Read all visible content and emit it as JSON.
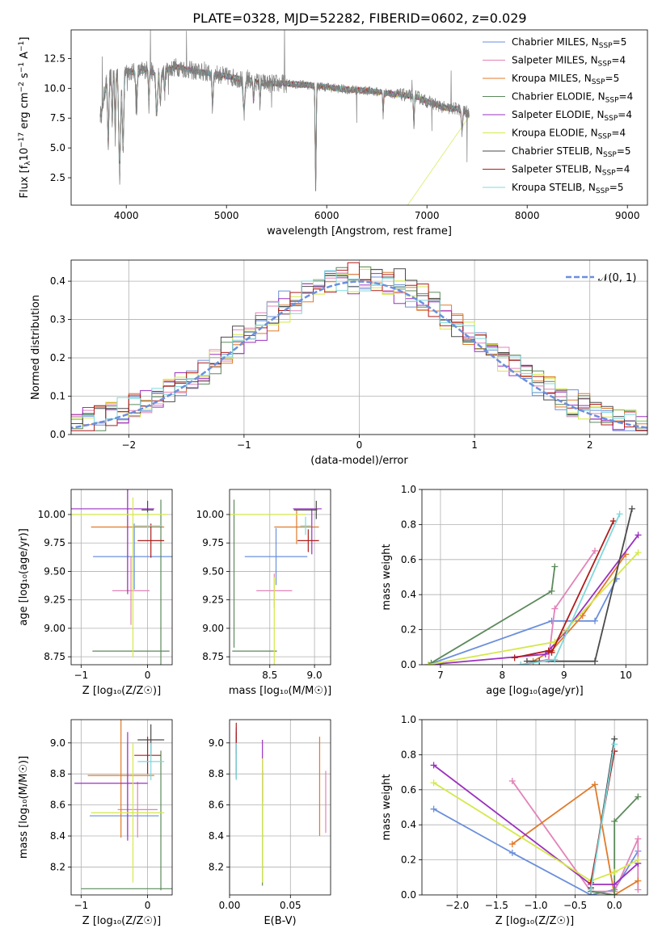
{
  "figure_title": "PLATE=0328, MJD=52282, FIBERID=0602, z=0.029",
  "legend_entries": [
    {
      "imf": "Chabrier",
      "lib": "MILES",
      "n": "5",
      "color": "#6b8fdc"
    },
    {
      "imf": "Salpeter",
      "lib": "MILES",
      "n": "4",
      "color": "#e283b8"
    },
    {
      "imf": "Kroupa",
      "lib": "MILES",
      "n": "5",
      "color": "#e07b2a"
    },
    {
      "imf": "Chabrier",
      "lib": "ELODIE",
      "n": "4",
      "color": "#5c8a5c"
    },
    {
      "imf": "Salpeter",
      "lib": "ELODIE",
      "n": "4",
      "color": "#9b30c0"
    },
    {
      "imf": "Kroupa",
      "lib": "ELODIE",
      "n": "4",
      "color": "#d4e84a"
    },
    {
      "imf": "Chabrier",
      "lib": "STELIB",
      "n": "5",
      "color": "#4a4a4a"
    },
    {
      "imf": "Salpeter",
      "lib": "STELIB",
      "n": "4",
      "color": "#b01c1c"
    },
    {
      "imf": "Kroupa",
      "lib": "STELIB",
      "n": "5",
      "color": "#7fd8dc"
    }
  ],
  "chart_data": [
    {
      "id": "spectrum",
      "type": "line",
      "xlabel": "wavelength [Angstrom, rest frame]",
      "ylabel_parts": [
        "Flux [f",
        "λ",
        "10",
        "−17",
        " erg cm",
        "−2",
        " s",
        "−1",
        " A",
        "−1",
        "]"
      ],
      "xlim": [
        3450,
        9200
      ],
      "ylim": [
        0.2,
        14.9
      ],
      "xticks": [
        4000,
        5000,
        6000,
        7000,
        8000,
        9000
      ],
      "yticks": [
        2.5,
        5.0,
        7.5,
        10.0,
        12.5
      ],
      "ytick_labels": [
        "2.5",
        "5.0",
        "7.5",
        "10.0",
        "12.5"
      ],
      "data_series": "gray",
      "model_series": [
        0,
        1,
        2,
        3,
        4,
        5,
        6,
        7,
        8
      ],
      "data_profile": {
        "wavelength": [
          3750,
          3800,
          3900,
          4000,
          4100,
          4200,
          4300,
          4400,
          4500,
          4600,
          4700,
          4800,
          4900,
          5000,
          5200,
          5400,
          5600,
          5800,
          6000,
          6200,
          6400,
          6600,
          6800,
          6900,
          7000,
          7100,
          7200,
          7300,
          7400,
          7420
        ],
        "flux": [
          7.8,
          10.5,
          11.5,
          11.5,
          11.3,
          11.6,
          11.2,
          11.5,
          11.8,
          11.6,
          11.4,
          11.3,
          11.2,
          11.0,
          10.7,
          10.4,
          10.4,
          10.3,
          10.1,
          9.9,
          9.8,
          9.6,
          9.4,
          9.3,
          8.9,
          8.6,
          8.3,
          8.3,
          8.0,
          7.8
        ]
      }
    },
    {
      "id": "residuals",
      "type": "histogram",
      "xlabel": "(data-model)/error",
      "ylabel": "Normed distribution",
      "xlim": [
        -2.5,
        2.5
      ],
      "ylim": [
        0,
        0.455
      ],
      "xticks": [
        -2,
        -1,
        0,
        1,
        2
      ],
      "xtick_labels": [
        "−2",
        "−1",
        "0",
        "1",
        "2"
      ],
      "yticks": [
        0.0,
        0.1,
        0.2,
        0.3,
        0.4
      ],
      "ytick_labels": [
        "0.0",
        "0.1",
        "0.2",
        "0.3",
        "0.4"
      ],
      "bin_width": 0.1,
      "gaussian_label": "𝒩(0, 1)",
      "gaussian_color": "#6b8fdc"
    },
    {
      "id": "age_vs_Z",
      "type": "errorbar",
      "xlabel": "Z [log₁₀(Z/Z☉)]",
      "ylabel": "age  [log₁₀(age/yr)]",
      "xlim": [
        -1.15,
        0.37
      ],
      "ylim": [
        8.68,
        10.22
      ],
      "xticks": [
        -1,
        0
      ],
      "xtick_labels": [
        "−1",
        "0"
      ],
      "yticks": [
        8.75,
        9.0,
        9.25,
        9.5,
        9.75,
        10.0
      ],
      "ytick_labels": [
        "8.75",
        "9.00",
        "9.25",
        "9.50",
        "9.75",
        "10.00"
      ],
      "points": [
        {
          "s": 0,
          "x": -0.2,
          "xerr": 0.62,
          "y": 9.63,
          "yerr": 0.29
        },
        {
          "s": 1,
          "x": -0.25,
          "xerr": 0.28,
          "y": 9.33,
          "yerr": 0.3
        },
        {
          "s": 2,
          "x": -0.3,
          "xerr": 0.55,
          "y": 9.89,
          "yerr": 0.56
        },
        {
          "s": 3,
          "x": -0.25,
          "xerr": 0.58,
          "y": 8.8,
          "yerr": 0.0
        },
        {
          "s": 3,
          "x": 0.2,
          "xerr": 0.0,
          "y": 9.28,
          "yerr": 0.85
        },
        {
          "s": 4,
          "x": -0.55,
          "xerr": 0.65,
          "y": 10.05,
          "yerr": 0.0
        },
        {
          "s": 4,
          "x": -0.3,
          "xerr": 0.0,
          "y": 9.8,
          "yerr": 0.5
        },
        {
          "s": 5,
          "x": -0.45,
          "xerr": 0.75,
          "y": 10.0,
          "yerr": 0.0
        },
        {
          "s": 5,
          "x": -0.22,
          "xerr": 0.0,
          "y": 9.45,
          "yerr": 0.7
        },
        {
          "s": 6,
          "x": 0.0,
          "xerr": 0.09,
          "y": 10.04,
          "yerr": 0.08
        },
        {
          "s": 7,
          "x": 0.05,
          "xerr": 0.2,
          "y": 9.77,
          "yerr": 0.15
        },
        {
          "s": 8,
          "x": 0.0,
          "xerr": 0.22,
          "y": 9.9,
          "yerr": 0.12
        }
      ]
    },
    {
      "id": "age_vs_mass",
      "type": "errorbar",
      "xlabel": "mass [log₁₀(M/M☉)]",
      "ylabel": "",
      "xlim": [
        8.05,
        9.18
      ],
      "ylim": [
        8.68,
        10.22
      ],
      "xticks": [
        8.5,
        9.0
      ],
      "xtick_labels": [
        "8.5",
        "9.0"
      ],
      "yticks": [
        8.75,
        9.0,
        9.25,
        9.5,
        9.75,
        10.0
      ],
      "ytick_labels": [
        "8.75",
        "9.00",
        "9.25",
        "9.50",
        "9.75",
        "10.00"
      ],
      "points": [
        {
          "s": 0,
          "x": 8.57,
          "xerr": 0.35,
          "y": 9.63,
          "yerr": 0.25
        },
        {
          "s": 1,
          "x": 8.55,
          "xerr": 0.2,
          "y": 9.33,
          "yerr": 0.15
        },
        {
          "s": 2,
          "x": 8.8,
          "xerr": 0.25,
          "y": 9.89,
          "yerr": 0.15
        },
        {
          "s": 3,
          "x": 8.1,
          "xerr": 0.0,
          "y": 9.48,
          "yerr": 0.65
        },
        {
          "s": 3,
          "x": 8.33,
          "xerr": 0.25,
          "y": 8.8,
          "yerr": 0.0
        },
        {
          "s": 4,
          "x": 8.97,
          "xerr": 0.0,
          "y": 9.85,
          "yerr": 0.2
        },
        {
          "s": 4,
          "x": 8.92,
          "xerr": 0.16,
          "y": 10.05,
          "yerr": 0.0
        },
        {
          "s": 5,
          "x": 8.55,
          "xerr": 0.0,
          "y": 9.0,
          "yerr": 0.45
        },
        {
          "s": 5,
          "x": 8.45,
          "xerr": 0.45,
          "y": 10.0,
          "yerr": 0.0
        },
        {
          "s": 6,
          "x": 9.02,
          "xerr": 0.0,
          "y": 10.04,
          "yerr": 0.08
        },
        {
          "s": 6,
          "x": 8.9,
          "xerr": 0.13,
          "y": 10.04,
          "yerr": 0.0
        },
        {
          "s": 7,
          "x": 8.93,
          "xerr": 0.12,
          "y": 9.77,
          "yerr": 0.1
        },
        {
          "s": 8,
          "x": 8.9,
          "xerr": 0.06,
          "y": 9.9,
          "yerr": 0.08
        }
      ]
    },
    {
      "id": "weight_vs_age",
      "type": "line",
      "xlabel": "age  [log₁₀(age/yr)]",
      "ylabel": "mass weight",
      "xlim": [
        6.7,
        10.35
      ],
      "ylim": [
        0,
        1.0
      ],
      "xticks": [
        7,
        8,
        9,
        10
      ],
      "xtick_labels": [
        "7",
        "8",
        "9",
        "10"
      ],
      "yticks": [
        0.0,
        0.2,
        0.4,
        0.6,
        0.8,
        1.0
      ],
      "ytick_labels": [
        "0.0",
        "0.2",
        "0.4",
        "0.6",
        "0.8",
        "1.0"
      ],
      "series": [
        {
          "s": 0,
          "x": [
            6.8,
            8.8,
            9.5,
            9.85
          ],
          "y": [
            0.0,
            0.25,
            0.25,
            0.49
          ]
        },
        {
          "s": 1,
          "x": [
            8.3,
            8.75,
            8.85,
            9.5
          ],
          "y": [
            0.0,
            0.03,
            0.32,
            0.65
          ]
        },
        {
          "s": 2,
          "x": [
            8.5,
            8.8,
            9.3,
            10.0
          ],
          "y": [
            0.02,
            0.08,
            0.28,
            0.63
          ]
        },
        {
          "s": 3,
          "x": [
            6.85,
            8.8,
            8.85
          ],
          "y": [
            0.01,
            0.42,
            0.56
          ]
        },
        {
          "s": 4,
          "x": [
            6.8,
            8.7,
            9.0,
            10.2
          ],
          "y": [
            0.0,
            0.06,
            0.18,
            0.74
          ]
        },
        {
          "s": 5,
          "x": [
            6.8,
            8.85,
            10.2
          ],
          "y": [
            0.0,
            0.13,
            0.64
          ]
        },
        {
          "s": 6,
          "x": [
            8.4,
            8.6,
            9.5,
            10.1
          ],
          "y": [
            0.02,
            0.02,
            0.02,
            0.89
          ]
        },
        {
          "s": 7,
          "x": [
            8.2,
            8.75,
            8.8,
            9.8
          ],
          "y": [
            0.04,
            0.08,
            0.07,
            0.82
          ]
        },
        {
          "s": 8,
          "x": [
            8.3,
            8.85,
            9.9
          ],
          "y": [
            0.0,
            0.03,
            0.86
          ]
        }
      ]
    },
    {
      "id": "mass_vs_Z",
      "type": "errorbar",
      "xlabel": "Z [log₁₀(Z/Z☉)]",
      "ylabel": "mass [log₁₀(M/M☉)]",
      "xlim": [
        -1.15,
        0.37
      ],
      "ylim": [
        8.02,
        9.15
      ],
      "xticks": [
        -1,
        0
      ],
      "xtick_labels": [
        "−1",
        "0"
      ],
      "yticks": [
        8.2,
        8.4,
        8.6,
        8.8,
        9.0
      ],
      "ytick_labels": [
        "8.2",
        "8.4",
        "8.6",
        "8.8",
        "9.0"
      ],
      "points": [
        {
          "s": 0,
          "x": -0.35,
          "xerr": 0.52,
          "y": 8.53,
          "yerr": 0.0
        },
        {
          "s": 0,
          "x": -0.3,
          "xerr": 0.0,
          "y": 8.7,
          "yerr": 0.3
        },
        {
          "s": 1,
          "x": -0.15,
          "xerr": 0.3,
          "y": 8.57,
          "yerr": 0.18
        },
        {
          "s": 2,
          "x": -0.4,
          "xerr": 0.5,
          "y": 8.79,
          "yerr": 0.4
        },
        {
          "s": 3,
          "x": -0.3,
          "xerr": 0.7,
          "y": 8.06,
          "yerr": 0.0
        },
        {
          "s": 3,
          "x": 0.2,
          "xerr": 0.0,
          "y": 8.5,
          "yerr": 0.45
        },
        {
          "s": 4,
          "x": -0.55,
          "xerr": 0.55,
          "y": 8.74,
          "yerr": 0.0
        },
        {
          "s": 4,
          "x": -0.3,
          "xerr": 0.0,
          "y": 8.72,
          "yerr": 0.35
        },
        {
          "s": 5,
          "x": -0.3,
          "xerr": 0.55,
          "y": 8.55,
          "yerr": 0.0
        },
        {
          "s": 5,
          "x": -0.22,
          "xerr": 0.0,
          "y": 8.55,
          "yerr": 0.45
        },
        {
          "s": 6,
          "x": 0.05,
          "xerr": 0.2,
          "y": 9.02,
          "yerr": 0.1
        },
        {
          "s": 7,
          "x": 0.0,
          "xerr": 0.2,
          "y": 8.92,
          "yerr": 0.12
        },
        {
          "s": 8,
          "x": 0.05,
          "xerr": 0.2,
          "y": 8.88,
          "yerr": 0.12
        }
      ]
    },
    {
      "id": "mass_vs_ebv",
      "type": "errorbar",
      "xlabel": "E(B-V)",
      "ylabel": "",
      "xlim": [
        0.0,
        0.083
      ],
      "ylim": [
        8.02,
        9.15
      ],
      "xticks": [
        0.0,
        0.05
      ],
      "xtick_labels": [
        "0.00",
        "0.05"
      ],
      "yticks": [
        8.2,
        8.4,
        8.6,
        8.8,
        9.0
      ],
      "ytick_labels": [
        "8.2",
        "8.4",
        "8.6",
        "8.8",
        "9.0"
      ],
      "points": [
        {
          "s": 0,
          "x": 0.0055,
          "xerr": 0.0,
          "y": 8.95,
          "yerr": 0.15
        },
        {
          "s": 1,
          "x": 0.079,
          "xerr": 0.0,
          "y": 8.62,
          "yerr": 0.2
        },
        {
          "s": 2,
          "x": 0.074,
          "xerr": 0.0,
          "y": 8.72,
          "yerr": 0.32
        },
        {
          "s": 3,
          "x": 0.027,
          "xerr": 0.0,
          "y": 8.45,
          "yerr": 0.37
        },
        {
          "s": 4,
          "x": 0.027,
          "xerr": 0.0,
          "y": 8.82,
          "yerr": 0.2
        },
        {
          "s": 5,
          "x": 0.027,
          "xerr": 0.0,
          "y": 8.5,
          "yerr": 0.4
        },
        {
          "s": 6,
          "x": 0.0055,
          "xerr": 0.0,
          "y": 8.92,
          "yerr": 0.15
        },
        {
          "s": 7,
          "x": 0.0055,
          "xerr": 0.0,
          "y": 9.03,
          "yerr": 0.1
        },
        {
          "s": 8,
          "x": 0.0055,
          "xerr": 0.0,
          "y": 8.88,
          "yerr": 0.12
        }
      ]
    },
    {
      "id": "weight_vs_Z",
      "type": "line",
      "xlabel": "Z [log₁₀(Z/Z☉)]",
      "ylabel": "mass weight",
      "xlim": [
        -2.45,
        0.42
      ],
      "ylim": [
        0,
        1.0
      ],
      "xticks": [
        -2.0,
        -1.5,
        -1.0,
        -0.5,
        0.0
      ],
      "xtick_labels": [
        "−2.0",
        "−1.5",
        "−1.0",
        "−0.5",
        "0.0"
      ],
      "yticks": [
        0.0,
        0.2,
        0.4,
        0.6,
        0.8,
        1.0
      ],
      "ytick_labels": [
        "0.0",
        "0.2",
        "0.4",
        "0.6",
        "0.8",
        "1.0"
      ],
      "series": [
        {
          "s": 0,
          "x": [
            -2.3,
            -1.3,
            -0.3,
            0.0,
            0.3
          ],
          "y": [
            0.49,
            0.24,
            0.0,
            0.03,
            0.25
          ]
        },
        {
          "s": 1,
          "x": [
            -1.3,
            -0.3,
            0.0,
            0.3,
            0.3
          ],
          "y": [
            0.65,
            0.02,
            0.02,
            0.32,
            0.03
          ]
        },
        {
          "s": 2,
          "x": [
            -1.3,
            -0.25,
            0.0,
            0.3
          ],
          "y": [
            0.29,
            0.63,
            0.0,
            0.08
          ]
        },
        {
          "s": 3,
          "x": [
            -0.3,
            0.0,
            0.0,
            0.3
          ],
          "y": [
            0.02,
            0.0,
            0.42,
            0.56
          ]
        },
        {
          "s": 4,
          "x": [
            -2.3,
            -0.3,
            0.0,
            0.3
          ],
          "y": [
            0.74,
            0.06,
            0.06,
            0.18
          ]
        },
        {
          "s": 5,
          "x": [
            -2.3,
            -0.3,
            0.0,
            0.3
          ],
          "y": [
            0.64,
            0.08,
            0.13,
            0.2
          ]
        },
        {
          "s": 6,
          "x": [
            -0.3,
            0.0
          ],
          "y": [
            0.04,
            0.89
          ]
        },
        {
          "s": 7,
          "x": [
            -0.3,
            0.0
          ],
          "y": [
            0.07,
            0.82
          ]
        },
        {
          "s": 8,
          "x": [
            -0.3,
            0.0
          ],
          "y": [
            0.03,
            0.86
          ]
        }
      ]
    }
  ]
}
